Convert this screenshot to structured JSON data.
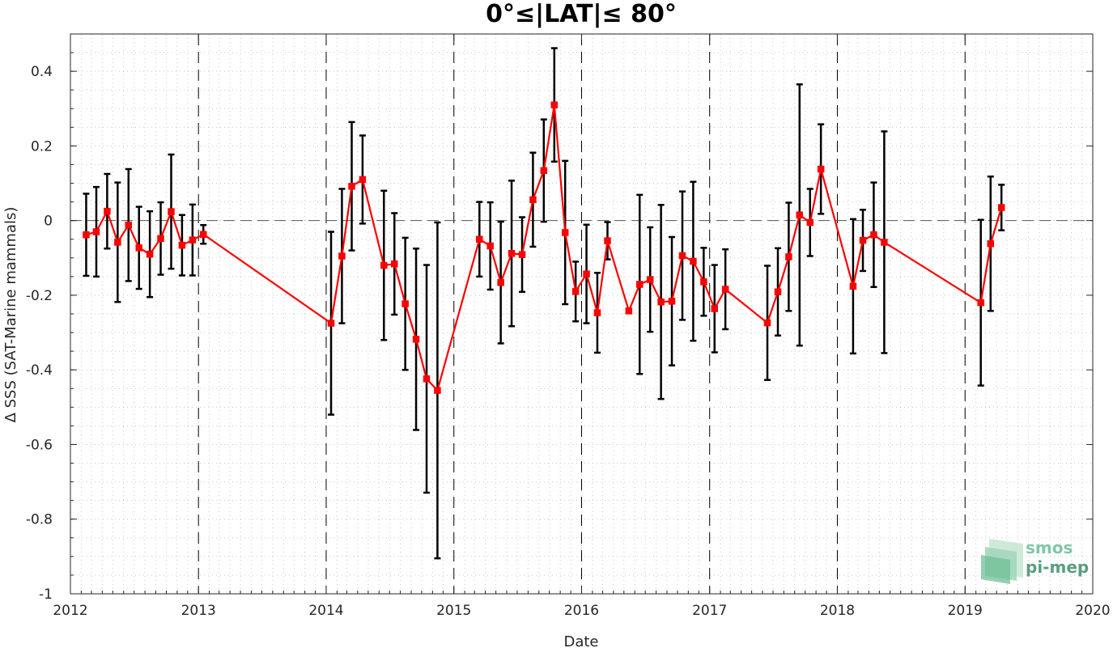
{
  "chart_data": {
    "type": "line",
    "title": "0°≤|LAT|≤ 80°",
    "xlabel": "Date",
    "ylabel": "Δ SSS (SAT-Marine mammals)",
    "xlim": [
      "2012-01-01",
      "2020-01-01"
    ],
    "ylim": [
      -1,
      0.5
    ],
    "x_ticks": [
      "2012",
      "2013",
      "2014",
      "2015",
      "2016",
      "2017",
      "2018",
      "2019",
      "2020"
    ],
    "y_ticks": [
      "0.4",
      "0.2",
      "0",
      "-0.2",
      "-0.4",
      "-0.6",
      "-0.8",
      "-1"
    ],
    "grid": true,
    "reference_line_y": 0,
    "year_divider_lines": true,
    "series": [
      {
        "color": "#ff0000",
        "marker": "square",
        "errorbar_color": "#000000",
        "points": [
          {
            "x": "2012-02-15",
            "y": -0.038,
            "err": 0.11
          },
          {
            "x": "2012-03-15",
            "y": -0.03,
            "err": 0.12
          },
          {
            "x": "2012-04-15",
            "y": 0.025,
            "err": 0.1
          },
          {
            "x": "2012-05-15",
            "y": -0.058,
            "err": 0.16
          },
          {
            "x": "2012-06-15",
            "y": -0.012,
            "err": 0.15
          },
          {
            "x": "2012-07-15",
            "y": -0.073,
            "err": 0.11
          },
          {
            "x": "2012-08-15",
            "y": -0.09,
            "err": 0.115
          },
          {
            "x": "2012-09-15",
            "y": -0.048,
            "err": 0.097
          },
          {
            "x": "2012-10-15",
            "y": 0.024,
            "err": 0.153
          },
          {
            "x": "2012-11-15",
            "y": -0.066,
            "err": 0.081
          },
          {
            "x": "2012-12-15",
            "y": -0.052,
            "err": 0.095
          },
          {
            "x": "2013-01-15",
            "y": -0.037,
            "err": 0.025
          },
          {
            "x": "2014-01-15",
            "y": -0.275,
            "err": 0.245
          },
          {
            "x": "2014-02-15",
            "y": -0.095,
            "err": 0.18
          },
          {
            "x": "2014-03-15",
            "y": 0.092,
            "err": 0.172
          },
          {
            "x": "2014-04-15",
            "y": 0.11,
            "err": 0.118
          },
          {
            "x": "2014-06-15",
            "y": -0.12,
            "err": 0.2
          },
          {
            "x": "2014-07-15",
            "y": -0.116,
            "err": 0.136
          },
          {
            "x": "2014-08-15",
            "y": -0.223,
            "err": 0.177
          },
          {
            "x": "2014-09-15",
            "y": -0.318,
            "err": 0.243
          },
          {
            "x": "2014-10-15",
            "y": -0.424,
            "err": 0.305
          },
          {
            "x": "2014-11-15",
            "y": -0.455,
            "err": 0.45
          },
          {
            "x": "2015-03-15",
            "y": -0.05,
            "err": 0.1
          },
          {
            "x": "2015-04-15",
            "y": -0.068,
            "err": 0.117
          },
          {
            "x": "2015-05-15",
            "y": -0.166,
            "err": 0.163
          },
          {
            "x": "2015-06-15",
            "y": -0.088,
            "err": 0.195
          },
          {
            "x": "2015-07-15",
            "y": -0.091,
            "err": 0.1
          },
          {
            "x": "2015-08-15",
            "y": 0.056,
            "err": 0.126
          },
          {
            "x": "2015-09-15",
            "y": 0.134,
            "err": 0.137
          },
          {
            "x": "2015-10-15",
            "y": 0.31,
            "err": 0.152
          },
          {
            "x": "2015-11-15",
            "y": -0.032,
            "err": 0.192
          },
          {
            "x": "2015-12-15",
            "y": -0.19,
            "err": 0.08
          },
          {
            "x": "2016-01-15",
            "y": -0.143,
            "err": 0.132
          },
          {
            "x": "2016-02-15",
            "y": -0.247,
            "err": 0.107
          },
          {
            "x": "2016-03-15",
            "y": -0.054,
            "err": 0.05
          },
          {
            "x": "2016-05-15",
            "y": -0.242,
            "err": 0.0
          },
          {
            "x": "2016-06-15",
            "y": -0.171,
            "err": 0.24
          },
          {
            "x": "2016-07-15",
            "y": -0.158,
            "err": 0.14
          },
          {
            "x": "2016-08-15",
            "y": -0.218,
            "err": 0.26
          },
          {
            "x": "2016-09-15",
            "y": -0.216,
            "err": 0.172
          },
          {
            "x": "2016-10-15",
            "y": -0.094,
            "err": 0.172
          },
          {
            "x": "2016-11-15",
            "y": -0.109,
            "err": 0.213
          },
          {
            "x": "2016-12-15",
            "y": -0.164,
            "err": 0.091
          },
          {
            "x": "2017-01-15",
            "y": -0.236,
            "err": 0.117
          },
          {
            "x": "2017-02-15",
            "y": -0.184,
            "err": 0.107
          },
          {
            "x": "2017-06-15",
            "y": -0.274,
            "err": 0.153
          },
          {
            "x": "2017-07-15",
            "y": -0.191,
            "err": 0.117
          },
          {
            "x": "2017-08-15",
            "y": -0.097,
            "err": 0.145
          },
          {
            "x": "2017-09-15",
            "y": 0.015,
            "err": 0.35
          },
          {
            "x": "2017-10-15",
            "y": -0.005,
            "err": 0.09
          },
          {
            "x": "2017-11-15",
            "y": 0.138,
            "err": 0.12
          },
          {
            "x": "2018-02-15",
            "y": -0.176,
            "err": 0.18
          },
          {
            "x": "2018-03-15",
            "y": -0.053,
            "err": 0.082
          },
          {
            "x": "2018-04-15",
            "y": -0.038,
            "err": 0.14
          },
          {
            "x": "2018-05-15",
            "y": -0.058,
            "err": 0.297
          },
          {
            "x": "2019-02-15",
            "y": -0.22,
            "err": 0.222
          },
          {
            "x": "2019-03-15",
            "y": -0.062,
            "err": 0.18
          },
          {
            "x": "2019-04-15",
            "y": 0.035,
            "err": 0.061
          }
        ]
      }
    ]
  },
  "logo": {
    "line1": "smos",
    "line2": "pi-mep",
    "colors": {
      "text1": "#7fc7a5",
      "text2": "#5a9e80",
      "panel_a": "#cfe9d9",
      "panel_b": "#9fd6b8",
      "panel_c": "#6fbf96"
    }
  },
  "colors": {
    "axis": "#262626",
    "grid": "#c8c8c8",
    "series": "#ff0000",
    "errorbar": "#000000",
    "divider": "#000000"
  }
}
